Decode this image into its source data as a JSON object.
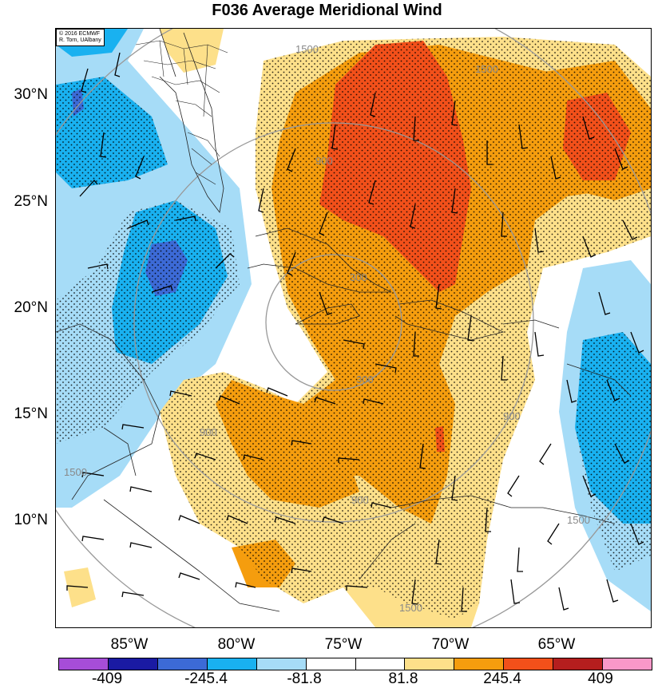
{
  "title": "F036 Average Meridional Wind",
  "credit": {
    "line1": "© 2016 ECMWF",
    "line2": "R. Torn, UAlbany"
  },
  "lat_labels": [
    "30°N",
    "25°N",
    "20°N",
    "15°N",
    "10°N"
  ],
  "lon_labels": [
    "85°W",
    "80°W",
    "75°W",
    "70°W",
    "65°W"
  ],
  "contour_labels": [
    "300",
    "900",
    "1500"
  ],
  "colorbar": {
    "colors": [
      "#a64dd8",
      "#1a1aa3",
      "#3c6ad6",
      "#19b1f0",
      "#a6dcf7",
      "#ffffff",
      "#ffffff",
      "#fde08a",
      "#f59d0e",
      "#f2501a",
      "#b51e1e",
      "#f998c8"
    ],
    "labels": [
      "-409",
      "-245.4",
      "-81.8",
      "81.8",
      "245.4",
      "409"
    ]
  },
  "fill_levels": {
    "strong_positive": "#f2501a",
    "positive": "#f59d0e",
    "weak_positive": "#fde08a",
    "weak_negative": "#a6dcf7",
    "negative": "#19b1f0",
    "strong_negative": "#3c6ad6"
  }
}
